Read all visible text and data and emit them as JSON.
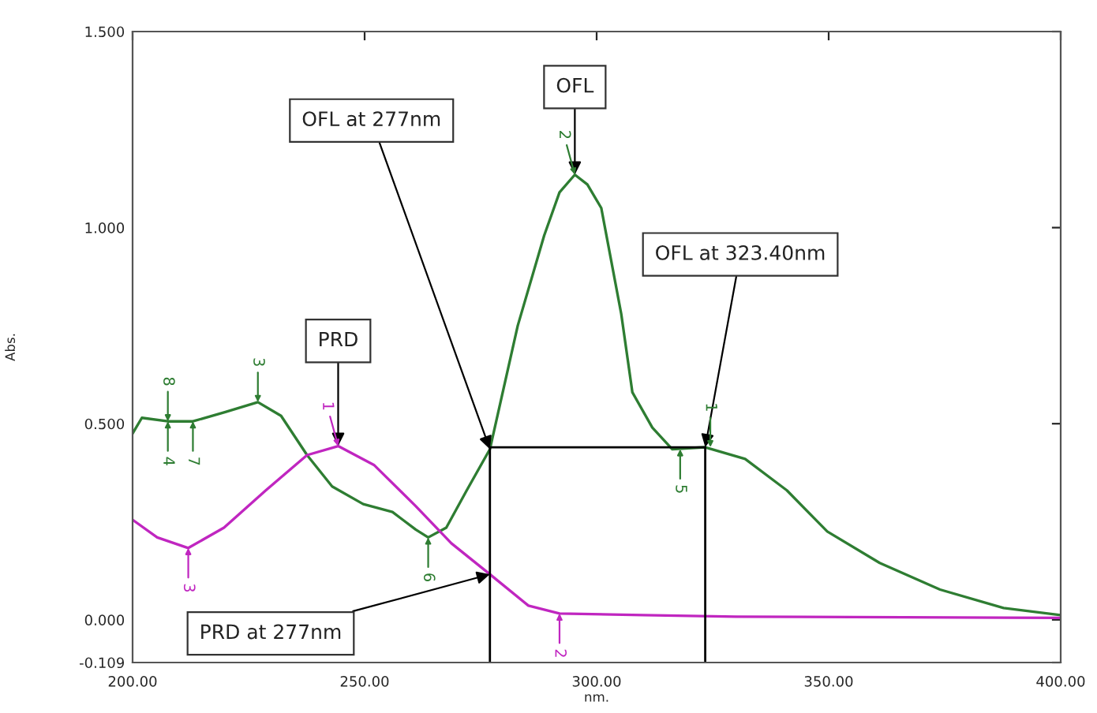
{
  "chart_data": {
    "type": "line",
    "xlabel": "nm.",
    "ylabel": "Abs.",
    "xlim": [
      200,
      400
    ],
    "ylim": [
      -0.109,
      1.5
    ],
    "xticks": [
      {
        "value": 200,
        "label": "200.00"
      },
      {
        "value": 250,
        "label": "250.00"
      },
      {
        "value": 300,
        "label": "300.00"
      },
      {
        "value": 350,
        "label": "350.00"
      },
      {
        "value": 400,
        "label": "400.00"
      }
    ],
    "yticks": [
      {
        "value": -0.109,
        "label": "-0.109"
      },
      {
        "value": 0,
        "label": "0.000"
      },
      {
        "value": 0.5,
        "label": "0.500"
      },
      {
        "value": 1.0,
        "label": "1.000"
      },
      {
        "value": 1.5,
        "label": "1.500"
      }
    ],
    "grid": false,
    "legend": false,
    "series": [
      {
        "color": "#2e7d32",
        "x": [
          200,
          202,
          207.6,
          213,
          220,
          227,
          232,
          237.6,
          243,
          249.7,
          256,
          261,
          263.7,
          267.6,
          272,
          277,
          283,
          288.7,
          292,
          295.3,
          298,
          301,
          305.3,
          307.7,
          312,
          316.3,
          323.4,
          332,
          341,
          349.7,
          361,
          374,
          387.7,
          400
        ],
        "values": [
          0.475,
          0.515,
          0.506,
          0.506,
          0.53,
          0.555,
          0.52,
          0.42,
          0.34,
          0.295,
          0.275,
          0.23,
          0.21,
          0.235,
          0.33,
          0.435,
          0.75,
          0.98,
          1.09,
          1.135,
          1.11,
          1.05,
          0.78,
          0.58,
          0.49,
          0.435,
          0.44,
          0.41,
          0.33,
          0.225,
          0.145,
          0.077,
          0.03,
          0.012
        ]
      },
      {
        "color": "#c026c0",
        "x": [
          200,
          205.3,
          212,
          219.7,
          228.7,
          237.6,
          244.3,
          252,
          261,
          268.7,
          277,
          285.3,
          292,
          310,
          330,
          400
        ],
        "values": [
          0.255,
          0.21,
          0.183,
          0.235,
          0.33,
          0.42,
          0.443,
          0.395,
          0.29,
          0.195,
          0.116,
          0.036,
          0.016,
          0.012,
          0.008,
          0.005
        ]
      },
      {
        "color": "#000000",
        "x": [
          277,
          277,
          323.4,
          323.4
        ],
        "values": [
          -0.109,
          0.44,
          0.44,
          -0.109
        ]
      }
    ],
    "annotations": [
      {
        "text": "OFL at 277nm",
        "x": 277,
        "y": 0.435
      },
      {
        "text": "OFL",
        "x": 295.3,
        "y": 1.135
      },
      {
        "text": "OFL at 323.40nm",
        "x": 323.4,
        "y": 0.44
      },
      {
        "text": "PRD",
        "x": 244.3,
        "y": 0.443
      },
      {
        "text": "PRD at 277nm",
        "x": 277,
        "y": 0.116
      },
      {
        "text": "4",
        "x": 207.6,
        "y": 0.506
      },
      {
        "text": "8",
        "x": 207.6,
        "y": 0.506
      },
      {
        "text": "7",
        "x": 213,
        "y": 0.506
      },
      {
        "text": "3",
        "x": 227,
        "y": 0.555
      },
      {
        "text": "6",
        "x": 263.7,
        "y": 0.21
      },
      {
        "text": "2",
        "x": 295.3,
        "y": 1.135
      },
      {
        "text": "5",
        "x": 318,
        "y": 0.435
      },
      {
        "text": "1",
        "x": 324.5,
        "y": 0.44
      },
      {
        "text": "3",
        "x": 212,
        "y": 0.183
      },
      {
        "text": "1",
        "x": 244.3,
        "y": 0.443
      },
      {
        "text": "2",
        "x": 292,
        "y": 0.016
      }
    ]
  }
}
